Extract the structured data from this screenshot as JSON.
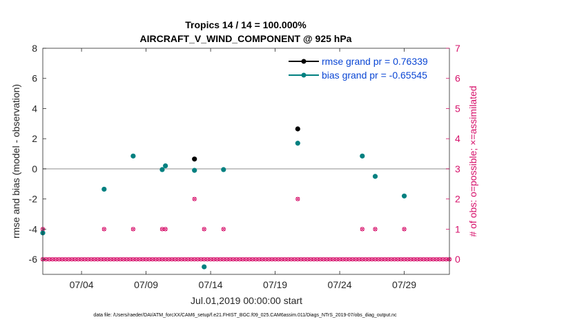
{
  "chart_data": {
    "type": "scatter",
    "title_line1": "Tropics 14 / 14 = 100.000%",
    "title_line2": "AIRCRAFT_V_WIND_COMPONENT @ 925 hPa",
    "xlabel": "Jul.01,2019 00:00:00 start",
    "ylabel_left": "rmse and bias (model - observation)",
    "ylabel_right": "# of obs: o=possible; ×=assimilated",
    "xlim": [
      1.0,
      32.5
    ],
    "ylim_left": [
      -7,
      8
    ],
    "ylim_right": [
      -0.5,
      7
    ],
    "x_ticks": [
      4,
      9,
      14,
      19,
      24,
      29
    ],
    "x_tick_labels": [
      "07/04",
      "07/09",
      "07/14",
      "07/19",
      "07/24",
      "07/29"
    ],
    "y_ticks_left": [
      -6,
      -4,
      -2,
      0,
      2,
      4,
      6,
      8
    ],
    "y_ticks_right": [
      0,
      1,
      2,
      3,
      4,
      5,
      6,
      7
    ],
    "zero_line": 0,
    "legend_position": "top-right",
    "series": [
      {
        "name": "rmse grand pr = 0.76339",
        "color": "#000000",
        "points": [
          [
            12.75,
            0.65
          ],
          [
            20.75,
            2.65
          ]
        ]
      },
      {
        "name": "bias grand pr = -0.65545",
        "color": "#008080",
        "points": [
          [
            1.0,
            -4.25
          ],
          [
            5.75,
            -1.35
          ],
          [
            8.0,
            0.85
          ],
          [
            10.25,
            -0.05
          ],
          [
            10.5,
            0.2
          ],
          [
            12.75,
            -0.1
          ],
          [
            13.5,
            -6.5
          ],
          [
            15.0,
            -0.05
          ],
          [
            20.75,
            1.7
          ],
          [
            25.75,
            0.85
          ],
          [
            26.75,
            -0.5
          ],
          [
            29.0,
            -1.8
          ]
        ]
      },
      {
        "name": "obs possible",
        "color": "#d6106a",
        "axis": "right",
        "x_start": 1.0,
        "x_step": 0.25,
        "base_value": 0,
        "nonzero": [
          [
            1.0,
            1
          ],
          [
            5.75,
            1
          ],
          [
            8.0,
            1
          ],
          [
            10.25,
            1
          ],
          [
            10.5,
            1
          ],
          [
            12.75,
            2
          ],
          [
            13.5,
            1
          ],
          [
            15.0,
            1
          ],
          [
            20.75,
            2
          ],
          [
            25.75,
            1
          ],
          [
            26.75,
            1
          ],
          [
            29.0,
            1
          ]
        ]
      }
    ]
  },
  "footer": "data file: /Users/raeder/DAI/ATM_forcXX/CAM6_setup/f.e21.FHIST_BGC.f09_025.CAM6assim.011/Diags_NTrS_2019-07/obs_diag_output.nc"
}
